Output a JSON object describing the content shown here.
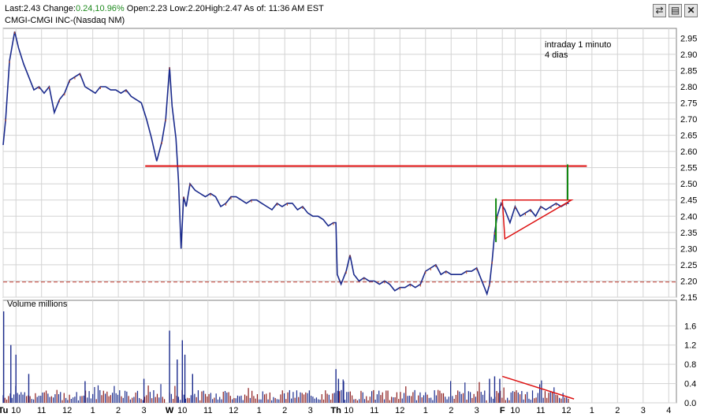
{
  "quote": {
    "last_label": "Last:",
    "last": "2.43",
    "change_label": "Change:",
    "change": "0.24,10.96%",
    "open_label": "Open:",
    "open": "2.23",
    "low_label": "Low:",
    "low": "2.20",
    "high_label": "High:",
    "high": "2.47",
    "asof": "As of: 11:36 AM EST",
    "symbol_line": "CMGI-CMGI INC-(Nasdaq NM)"
  },
  "colors": {
    "up": "#1f8a1f",
    "price": "#1a2a8c",
    "price_up": "#b33a1a",
    "annotation": "#dd1111",
    "annotation_green": "#118811",
    "grid": "#d3d3d3",
    "panel_border": "#808080"
  },
  "toolbar": {
    "refresh_icon": "refresh-icon",
    "print_icon": "print-icon",
    "close_icon": "close-icon"
  },
  "legend": {
    "line1": "intraday 1 minuto",
    "line2": "4 dias"
  },
  "volume_panel": {
    "title": "Volume  millions"
  },
  "chart_data": {
    "type": "line",
    "title": "CMGI-CMGI INC-(Nasdaq NM)",
    "interval": "intraday 1 minuto",
    "price_ylim": [
      2.15,
      2.98
    ],
    "price_yticks": [
      "2.95",
      "2.90",
      "2.85",
      "2.80",
      "2.75",
      "2.70",
      "2.65",
      "2.60",
      "2.55",
      "2.50",
      "2.45",
      "2.40",
      "2.35",
      "2.30",
      "2.25",
      "2.20",
      "2.15"
    ],
    "volume_ylim": [
      0,
      1.9
    ],
    "volume_yticks": [
      "1.6",
      "1.2",
      "0.8",
      "0.4",
      "0.0"
    ],
    "x_ticks": [
      {
        "label": "Tu",
        "t": 0
      },
      {
        "label": "10",
        "t": 0.5
      },
      {
        "label": "11",
        "t": 1.5
      },
      {
        "label": "12",
        "t": 2.5
      },
      {
        "label": "1",
        "t": 3.5
      },
      {
        "label": "2",
        "t": 4.5
      },
      {
        "label": "3",
        "t": 5.5
      },
      {
        "label": "W",
        "t": 6.5
      },
      {
        "label": "10",
        "t": 7
      },
      {
        "label": "11",
        "t": 8
      },
      {
        "label": "12",
        "t": 9
      },
      {
        "label": "1",
        "t": 10
      },
      {
        "label": "2",
        "t": 11
      },
      {
        "label": "3",
        "t": 12
      },
      {
        "label": "Th",
        "t": 13
      },
      {
        "label": "10",
        "t": 13.5
      },
      {
        "label": "11",
        "t": 14.5
      },
      {
        "label": "12",
        "t": 15.5
      },
      {
        "label": "1",
        "t": 16.5
      },
      {
        "label": "2",
        "t": 17.5
      },
      {
        "label": "3",
        "t": 18.5
      },
      {
        "label": "F",
        "t": 19.5
      },
      {
        "label": "10",
        "t": 20
      },
      {
        "label": "11",
        "t": 21
      },
      {
        "label": "12",
        "t": 22
      },
      {
        "label": "1",
        "t": 23
      },
      {
        "label": "2",
        "t": 24
      },
      {
        "label": "3",
        "t": 25
      },
      {
        "label": "4",
        "t": 26
      }
    ],
    "price_series": {
      "name": "",
      "points": [
        [
          0,
          2.62
        ],
        [
          0.1,
          2.7
        ],
        [
          0.25,
          2.88
        ],
        [
          0.45,
          2.97
        ],
        [
          0.6,
          2.92
        ],
        [
          0.8,
          2.87
        ],
        [
          1.0,
          2.83
        ],
        [
          1.2,
          2.79
        ],
        [
          1.4,
          2.8
        ],
        [
          1.6,
          2.78
        ],
        [
          1.8,
          2.8
        ],
        [
          2.0,
          2.72
        ],
        [
          2.2,
          2.76
        ],
        [
          2.4,
          2.78
        ],
        [
          2.6,
          2.82
        ],
        [
          2.8,
          2.83
        ],
        [
          3.0,
          2.84
        ],
        [
          3.2,
          2.8
        ],
        [
          3.4,
          2.79
        ],
        [
          3.6,
          2.78
        ],
        [
          3.8,
          2.8
        ],
        [
          4.0,
          2.8
        ],
        [
          4.2,
          2.79
        ],
        [
          4.4,
          2.79
        ],
        [
          4.6,
          2.78
        ],
        [
          4.8,
          2.79
        ],
        [
          5.0,
          2.77
        ],
        [
          5.2,
          2.76
        ],
        [
          5.4,
          2.75
        ],
        [
          5.6,
          2.7
        ],
        [
          5.8,
          2.64
        ],
        [
          6.0,
          2.57
        ],
        [
          6.2,
          2.63
        ],
        [
          6.35,
          2.7
        ],
        [
          6.5,
          2.86
        ],
        [
          6.6,
          2.74
        ],
        [
          6.75,
          2.64
        ],
        [
          6.85,
          2.51
        ],
        [
          6.95,
          2.3
        ],
        [
          7.05,
          2.46
        ],
        [
          7.15,
          2.43
        ],
        [
          7.3,
          2.5
        ],
        [
          7.5,
          2.48
        ],
        [
          7.7,
          2.47
        ],
        [
          7.9,
          2.46
        ],
        [
          8.1,
          2.47
        ],
        [
          8.3,
          2.46
        ],
        [
          8.5,
          2.43
        ],
        [
          8.7,
          2.44
        ],
        [
          8.9,
          2.46
        ],
        [
          9.1,
          2.46
        ],
        [
          9.3,
          2.45
        ],
        [
          9.5,
          2.44
        ],
        [
          9.7,
          2.45
        ],
        [
          9.9,
          2.45
        ],
        [
          10.1,
          2.44
        ],
        [
          10.3,
          2.43
        ],
        [
          10.5,
          2.42
        ],
        [
          10.7,
          2.44
        ],
        [
          10.9,
          2.43
        ],
        [
          11.1,
          2.44
        ],
        [
          11.3,
          2.44
        ],
        [
          11.5,
          2.42
        ],
        [
          11.7,
          2.43
        ],
        [
          11.9,
          2.41
        ],
        [
          12.1,
          2.4
        ],
        [
          12.3,
          2.4
        ],
        [
          12.5,
          2.39
        ],
        [
          12.7,
          2.37
        ],
        [
          12.9,
          2.38
        ],
        [
          13.0,
          2.38
        ],
        [
          13.05,
          2.22
        ],
        [
          13.2,
          2.19
        ],
        [
          13.4,
          2.23
        ],
        [
          13.55,
          2.28
        ],
        [
          13.7,
          2.22
        ],
        [
          13.9,
          2.2
        ],
        [
          14.1,
          2.21
        ],
        [
          14.3,
          2.2
        ],
        [
          14.5,
          2.2
        ],
        [
          14.7,
          2.19
        ],
        [
          14.9,
          2.2
        ],
        [
          15.1,
          2.19
        ],
        [
          15.3,
          2.17
        ],
        [
          15.5,
          2.18
        ],
        [
          15.7,
          2.18
        ],
        [
          15.9,
          2.19
        ],
        [
          16.1,
          2.18
        ],
        [
          16.3,
          2.19
        ],
        [
          16.5,
          2.23
        ],
        [
          16.7,
          2.24
        ],
        [
          16.9,
          2.25
        ],
        [
          17.1,
          2.22
        ],
        [
          17.3,
          2.23
        ],
        [
          17.5,
          2.22
        ],
        [
          17.7,
          2.22
        ],
        [
          17.9,
          2.22
        ],
        [
          18.1,
          2.23
        ],
        [
          18.3,
          2.23
        ],
        [
          18.5,
          2.24
        ],
        [
          18.65,
          2.21
        ],
        [
          18.8,
          2.18
        ],
        [
          18.9,
          2.16
        ],
        [
          19.0,
          2.19
        ],
        [
          19.1,
          2.26
        ],
        [
          19.2,
          2.35
        ],
        [
          19.3,
          2.4
        ],
        [
          19.45,
          2.44
        ],
        [
          19.6,
          2.42
        ],
        [
          19.8,
          2.38
        ],
        [
          20.0,
          2.43
        ],
        [
          20.2,
          2.4
        ],
        [
          20.4,
          2.41
        ],
        [
          20.6,
          2.42
        ],
        [
          20.8,
          2.4
        ],
        [
          21.0,
          2.43
        ],
        [
          21.2,
          2.42
        ],
        [
          21.4,
          2.43
        ],
        [
          21.6,
          2.44
        ],
        [
          21.8,
          2.43
        ],
        [
          22.0,
          2.44
        ],
        [
          22.1,
          2.44
        ]
      ]
    },
    "volume_series": {
      "name": "",
      "spikes": [
        [
          0.02,
          1.9
        ],
        [
          0.3,
          1.2
        ],
        [
          0.5,
          1.0
        ],
        [
          1.0,
          0.6
        ],
        [
          3.2,
          0.45
        ],
        [
          5.5,
          0.5
        ],
        [
          6.5,
          1.5
        ],
        [
          6.8,
          0.9
        ],
        [
          7.0,
          1.3
        ],
        [
          7.1,
          1.0
        ],
        [
          7.4,
          0.6
        ],
        [
          13.0,
          0.7
        ],
        [
          13.1,
          0.5
        ],
        [
          13.3,
          0.45
        ],
        [
          19.0,
          0.5
        ],
        [
          19.2,
          0.55
        ],
        [
          19.4,
          0.5
        ]
      ]
    },
    "annotations": {
      "resistance_line": {
        "t_start": 5.55,
        "t_end": 22.8,
        "value": 2.555
      },
      "support_dashed": {
        "value": 2.197
      },
      "triangle": {
        "top_left": [
          19.5,
          2.45
        ],
        "right": [
          22.2,
          2.45
        ],
        "bottom_left": [
          19.6,
          2.33
        ]
      },
      "green_flag_left": {
        "t": 19.25,
        "from": 2.32,
        "to": 2.455
      },
      "green_flag_right": {
        "t": 22.05,
        "from": 2.45,
        "to": 2.56
      },
      "volume_trend": {
        "t_start": 19.5,
        "v_start": 0.55,
        "t_end": 22.3,
        "v_end": 0.08
      }
    }
  }
}
